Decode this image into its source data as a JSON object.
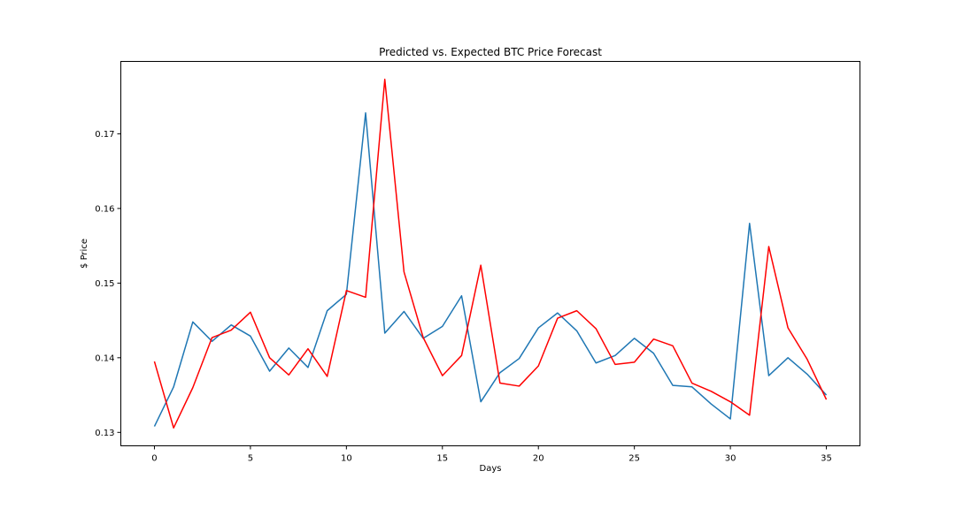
{
  "chart_data": {
    "type": "line",
    "title": "Predicted vs. Expected BTC Price Forecast",
    "xlabel": "Days",
    "ylabel": "$ Price",
    "xlim": [
      -1.75,
      36.75
    ],
    "ylim": [
      0.1282,
      0.1797
    ],
    "x_ticks": [
      0,
      5,
      10,
      15,
      20,
      25,
      30,
      35
    ],
    "y_ticks": [
      0.13,
      0.14,
      0.15,
      0.16,
      0.17
    ],
    "x_tick_labels": [
      "0",
      "5",
      "10",
      "15",
      "20",
      "25",
      "30",
      "35"
    ],
    "y_tick_labels": [
      "0.13",
      "0.14",
      "0.15",
      "0.16",
      "0.17"
    ],
    "grid": false,
    "legend": "none",
    "series": [
      {
        "color": "#1f77b4",
        "x": [
          0,
          1,
          2,
          3,
          4,
          5,
          6,
          7,
          8,
          9,
          10,
          11,
          12,
          13,
          14,
          15,
          16,
          17,
          18,
          19,
          20,
          21,
          22,
          23,
          24,
          25,
          26,
          27,
          28,
          29,
          30,
          31,
          32,
          33,
          34,
          35
        ],
        "values": [
          0.1308,
          0.1361,
          0.1448,
          0.1422,
          0.1444,
          0.1429,
          0.1382,
          0.1413,
          0.1387,
          0.1463,
          0.1485,
          0.1728,
          0.1433,
          0.1462,
          0.1426,
          0.1442,
          0.1483,
          0.1341,
          0.138,
          0.1399,
          0.144,
          0.146,
          0.1436,
          0.1393,
          0.1403,
          0.1426,
          0.1406,
          0.1363,
          0.1361,
          0.1338,
          0.1318,
          0.158,
          0.1376,
          0.14,
          0.1378,
          0.135
        ]
      },
      {
        "color": "#ff0000",
        "x": [
          0,
          1,
          2,
          3,
          4,
          5,
          6,
          7,
          8,
          9,
          10,
          11,
          12,
          13,
          14,
          15,
          16,
          17,
          18,
          19,
          20,
          21,
          22,
          23,
          24,
          25,
          26,
          27,
          28,
          29,
          30,
          31,
          32,
          33,
          34,
          35
        ],
        "values": [
          0.1395,
          0.1306,
          0.136,
          0.1427,
          0.1437,
          0.1461,
          0.14,
          0.1377,
          0.1412,
          0.1375,
          0.149,
          0.1481,
          0.1773,
          0.1515,
          0.1427,
          0.1376,
          0.1403,
          0.1524,
          0.1366,
          0.1362,
          0.1389,
          0.1453,
          0.1463,
          0.1439,
          0.1391,
          0.1394,
          0.1425,
          0.1416,
          0.1366,
          0.1355,
          0.1341,
          0.1323,
          0.1549,
          0.144,
          0.1398,
          0.1344
        ]
      }
    ]
  }
}
